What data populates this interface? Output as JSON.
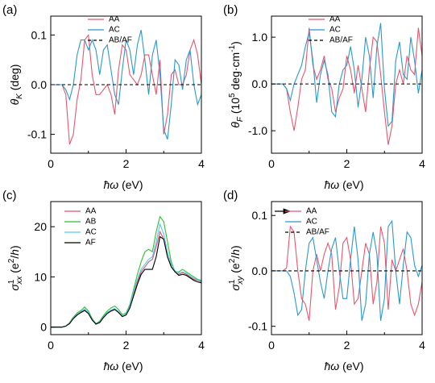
{
  "chart_data": [
    {
      "type": "line",
      "panel_label": "(a)",
      "legend": "upper center",
      "xlabel": [
        {
          "text": "ħω",
          "italic": true
        },
        {
          "text": " (eV)"
        }
      ],
      "ylabel": [
        {
          "text": "θ",
          "italic": true
        },
        {
          "text": "K",
          "shift": "sub",
          "italic": true
        },
        {
          "text": " (deg)"
        }
      ],
      "xlim": [
        0,
        4
      ],
      "xticks": [
        0,
        2,
        4
      ],
      "xminor_ticks": [
        1,
        3
      ],
      "ylim": [
        -0.138,
        0.138
      ],
      "yticks": [
        0.1,
        {
          "value": 0,
          "label": "0.0"
        },
        -0.1
      ],
      "x": [
        0,
        0.1,
        0.2,
        0.3,
        0.4,
        0.5,
        0.6,
        0.7,
        0.8,
        0.9,
        1,
        1.1,
        1.2,
        1.3,
        1.4,
        1.5,
        1.6,
        1.7,
        1.8,
        1.9,
        2,
        2.1,
        2.2,
        2.3,
        2.4,
        2.5,
        2.6,
        2.7,
        2.8,
        2.9,
        3,
        3.1,
        3.2,
        3.3,
        3.4,
        3.5,
        3.6,
        3.7,
        3.8,
        3.9,
        4
      ],
      "series": [
        {
          "name": "AA",
          "color": "#e8566e",
          "values": [
            0,
            0,
            0,
            0,
            -0.02,
            -0.12,
            -0.1,
            -0.03,
            0.01,
            0.09,
            0.1,
            0.02,
            -0.02,
            -0.02,
            -0.01,
            0,
            -0.02,
            -0.06,
            0.03,
            0.08,
            0.07,
            0.02,
            0.01,
            0,
            0.02,
            0.06,
            0.06,
            0.02,
            -0.02,
            0.05,
            -0.1,
            -0.06,
            0.02,
            0.03,
            0,
            0,
            0.02,
            0.07,
            0.09,
            0.06,
            0
          ]
        },
        {
          "name": "AC",
          "color": "#2b98cf",
          "values": [
            0,
            0,
            0,
            0,
            -0.01,
            -0.03,
            0,
            0.06,
            0.09,
            0.09,
            0.07,
            0.09,
            0.07,
            0.02,
            0.07,
            0.08,
            0.03,
            -0.02,
            -0.04,
            0.03,
            0.09,
            0.07,
            0.02,
            0.08,
            0.11,
            0.05,
            -0.02,
            0.06,
            0.09,
            0.02,
            -0.09,
            -0.11,
            -0.04,
            0.05,
            0.04,
            -0.01,
            0.05,
            0.07,
            0,
            -0.04,
            -0.02
          ]
        },
        {
          "name": "AB/AF",
          "color": "#000000",
          "dash": true,
          "x": [
            0,
            4
          ],
          "values": [
            0,
            0
          ]
        }
      ]
    },
    {
      "type": "line",
      "panel_label": "(b)",
      "legend": "upper center",
      "xlabel": [
        {
          "text": "ħω",
          "italic": true
        },
        {
          "text": " (eV)"
        }
      ],
      "ylabel": [
        {
          "text": "θ",
          "italic": true
        },
        {
          "text": "F",
          "shift": "sub",
          "italic": true
        },
        {
          "text": " (10"
        },
        {
          "text": "5",
          "shift": "sup"
        },
        {
          "text": " deg·cm"
        },
        {
          "text": "-1",
          "shift": "sup"
        },
        {
          "text": ")"
        }
      ],
      "xlim": [
        0,
        4
      ],
      "xticks": [
        0,
        2,
        4
      ],
      "xminor_ticks": [
        1,
        3
      ],
      "ylim": [
        -1.48,
        1.45
      ],
      "yticks": [
        {
          "value": 1,
          "label": "1.0"
        },
        {
          "value": 0,
          "label": "0.0"
        },
        {
          "value": -1,
          "label": "-1.0"
        }
      ],
      "x": [
        0,
        0.1,
        0.2,
        0.3,
        0.4,
        0.5,
        0.6,
        0.7,
        0.8,
        0.9,
        1,
        1.1,
        1.2,
        1.3,
        1.4,
        1.5,
        1.6,
        1.7,
        1.8,
        1.9,
        2,
        2.1,
        2.2,
        2.3,
        2.4,
        2.5,
        2.6,
        2.7,
        2.8,
        2.9,
        3,
        3.1,
        3.2,
        3.3,
        3.4,
        3.5,
        3.6,
        3.7,
        3.8,
        3.9,
        4
      ],
      "series": [
        {
          "name": "AA",
          "color": "#e8566e",
          "values": [
            0,
            0,
            0,
            0,
            -0.1,
            -0.6,
            -1,
            -0.5,
            0.1,
            0.3,
            1.2,
            0.4,
            0.1,
            0.3,
            0.6,
            0.1,
            -0.1,
            -0.6,
            -0.3,
            -0.1,
            0.6,
            0.3,
            -0.2,
            0.4,
            -0.1,
            -0.6,
            0.3,
            1,
            0.9,
            0.2,
            -0.6,
            -1.3,
            -0.9,
            0,
            0.3,
            0,
            0.6,
            0.3,
            0.2,
            1.2,
            0.6
          ]
        },
        {
          "name": "AC",
          "color": "#2b98cf",
          "values": [
            0,
            0,
            0,
            0,
            -0.1,
            -0.35,
            0,
            0.2,
            0.4,
            0.8,
            1.1,
            0.5,
            -0.4,
            0.2,
            0.5,
            0.2,
            -0.6,
            -0.7,
            0,
            0.3,
            0.4,
            0.8,
            0.3,
            -0.5,
            0.1,
            1,
            0.6,
            -0.3,
            0.8,
            1.3,
            -0.1,
            -0.9,
            -0.8,
            0.5,
            0.9,
            0.2,
            0.1,
            1,
            0.5,
            -0.2,
            0.3
          ]
        },
        {
          "name": "AB/AF",
          "color": "#000000",
          "dash": true,
          "x": [
            0,
            4
          ],
          "values": [
            0,
            0
          ]
        }
      ]
    },
    {
      "type": "line",
      "panel_label": "(c)",
      "legend": "upper left",
      "xlabel": [
        {
          "text": "ħω",
          "italic": true
        },
        {
          "text": " (eV)"
        }
      ],
      "ylabel": [
        {
          "text": "σ",
          "italic": true
        },
        {
          "text": "1",
          "shift": "sup"
        },
        {
          "text": "xx",
          "shift": "sub",
          "italic": true
        },
        {
          "text": " (e"
        },
        {
          "text": "2",
          "shift": "sup"
        },
        {
          "text": "/"
        },
        {
          "text": "h",
          "italic": true
        },
        {
          "text": ")"
        }
      ],
      "xlim": [
        0,
        4
      ],
      "xticks": [
        0,
        2,
        4
      ],
      "xminor_ticks": [
        1,
        3
      ],
      "ylim": [
        -1.5,
        25
      ],
      "yticks": [
        0,
        10,
        20
      ],
      "x": [
        0,
        0.1,
        0.2,
        0.3,
        0.4,
        0.5,
        0.6,
        0.7,
        0.8,
        0.9,
        1,
        1.1,
        1.2,
        1.3,
        1.4,
        1.5,
        1.6,
        1.7,
        1.8,
        1.9,
        2,
        2.1,
        2.2,
        2.3,
        2.4,
        2.5,
        2.6,
        2.7,
        2.8,
        2.9,
        3,
        3.1,
        3.2,
        3.3,
        3.4,
        3.5,
        3.6,
        3.7,
        3.8,
        3.9,
        4
      ],
      "series": [
        {
          "name": "AA",
          "color": "#e0506a",
          "values": [
            0,
            0,
            0,
            0,
            0.2,
            0.8,
            1.8,
            2.5,
            3,
            3.5,
            2.8,
            1.5,
            0.6,
            1,
            2,
            2.8,
            3.3,
            3.6,
            3,
            2.2,
            2.5,
            4,
            6.5,
            9,
            11,
            12,
            13,
            13.5,
            16,
            19,
            17.5,
            14,
            12,
            11,
            10.5,
            10.8,
            10.5,
            10,
            9.5,
            9.3,
            9
          ]
        },
        {
          "name": "AB",
          "color": "#2fc12f",
          "values": [
            0,
            0,
            0,
            0,
            0.2,
            0.9,
            2,
            2.8,
            3.3,
            4,
            3.2,
            1.7,
            0.7,
            1.2,
            2.3,
            3.2,
            3.8,
            4.2,
            3.5,
            2.5,
            2.8,
            4.5,
            7.5,
            10.5,
            13,
            15,
            15.5,
            15,
            19,
            22,
            21,
            17,
            13,
            11,
            11,
            11.5,
            11,
            10.5,
            10,
            9.5,
            9.3
          ]
        },
        {
          "name": "AC",
          "color": "#55c6f2",
          "values": [
            0,
            0,
            0,
            0,
            0.2,
            0.8,
            1.8,
            2.5,
            3.1,
            3.6,
            2.9,
            1.5,
            0.6,
            1,
            2,
            2.9,
            3.4,
            3.7,
            3.1,
            2.2,
            2.6,
            4.2,
            7,
            9.5,
            11.5,
            12.5,
            13.5,
            14,
            17,
            20.5,
            18.5,
            15,
            12.5,
            11.2,
            10.8,
            11,
            10.7,
            10.2,
            9.7,
            9.4,
            9.1
          ]
        },
        {
          "name": "AF",
          "color": "#000000",
          "values": [
            0,
            0,
            0,
            0,
            0.2,
            0.7,
            1.7,
            2.4,
            2.9,
            3.3,
            2.7,
            1.4,
            0.6,
            0.9,
            1.9,
            2.7,
            3.2,
            3.5,
            2.9,
            2.1,
            2.4,
            3.8,
            6.2,
            8.5,
            10.5,
            11.5,
            11.5,
            11.5,
            14,
            18,
            17.5,
            14,
            12,
            11,
            10.3,
            10.5,
            10.3,
            9.8,
            9.3,
            9,
            8.8
          ]
        }
      ]
    },
    {
      "type": "line",
      "panel_label": "(d)",
      "legend": "upper left",
      "xlabel": [
        {
          "text": "ħω",
          "italic": true
        },
        {
          "text": " (eV)"
        }
      ],
      "ylabel": [
        {
          "text": "σ",
          "italic": true
        },
        {
          "text": "1",
          "shift": "sup"
        },
        {
          "text": "xy",
          "shift": "sub",
          "italic": true
        },
        {
          "text": " (e"
        },
        {
          "text": "2",
          "shift": "sup"
        },
        {
          "text": "/"
        },
        {
          "text": "h",
          "italic": true
        },
        {
          "text": ")"
        }
      ],
      "xlim": [
        0,
        4
      ],
      "xticks": [
        0,
        2,
        4
      ],
      "xminor_ticks": [
        1,
        3
      ],
      "ylim": [
        -0.115,
        0.125
      ],
      "yticks": [
        0.1,
        {
          "value": 0,
          "label": "0.0"
        },
        -0.1
      ],
      "x": [
        0,
        0.1,
        0.2,
        0.3,
        0.4,
        0.5,
        0.6,
        0.7,
        0.8,
        0.9,
        1,
        1.1,
        1.2,
        1.3,
        1.4,
        1.5,
        1.6,
        1.7,
        1.8,
        1.9,
        2,
        2.1,
        2.2,
        2.3,
        2.4,
        2.5,
        2.6,
        2.7,
        2.8,
        2.9,
        3,
        3.1,
        3.2,
        3.3,
        3.4,
        3.5,
        3.6,
        3.7,
        3.8,
        3.9,
        4
      ],
      "series": [
        {
          "name": "AA",
          "color": "#e8566e",
          "values": [
            0,
            0,
            0,
            0,
            0.005,
            0.08,
            0.07,
            0,
            -0.05,
            -0.06,
            -0.09,
            0,
            0.03,
            0,
            0.03,
            0.05,
            0.03,
            -0.07,
            -0.03,
            0.05,
            0.06,
            0.02,
            -0.06,
            -0.05,
            0,
            0.05,
            0.03,
            -0.06,
            -0.02,
            0.08,
            0.05,
            -0.07,
            0.02,
            0,
            0.02,
            0.04,
            0,
            -0.06,
            -0.08,
            -0.06,
            -0.02
          ]
        },
        {
          "name": "AC",
          "color": "#2b98cf",
          "values": [
            0,
            0,
            0,
            0,
            0,
            -0.01,
            -0.04,
            -0.08,
            -0.07,
            0,
            0.05,
            0.06,
            0.02,
            -0.02,
            -0.05,
            0,
            0.04,
            0.06,
            0,
            -0.05,
            -0.05,
            0.02,
            0.08,
            0.02,
            -0.09,
            -0.06,
            0.03,
            0.07,
            0.03,
            -0.09,
            -0.05,
            0.08,
            0.09,
            0,
            -0.06,
            0.01,
            0.07,
            0.06,
            0.01,
            -0.01,
            0.01
          ]
        },
        {
          "name": "AB/AF",
          "color": "#000000",
          "dash": true,
          "x": [
            0,
            4
          ],
          "values": [
            0,
            0
          ]
        }
      ]
    }
  ]
}
